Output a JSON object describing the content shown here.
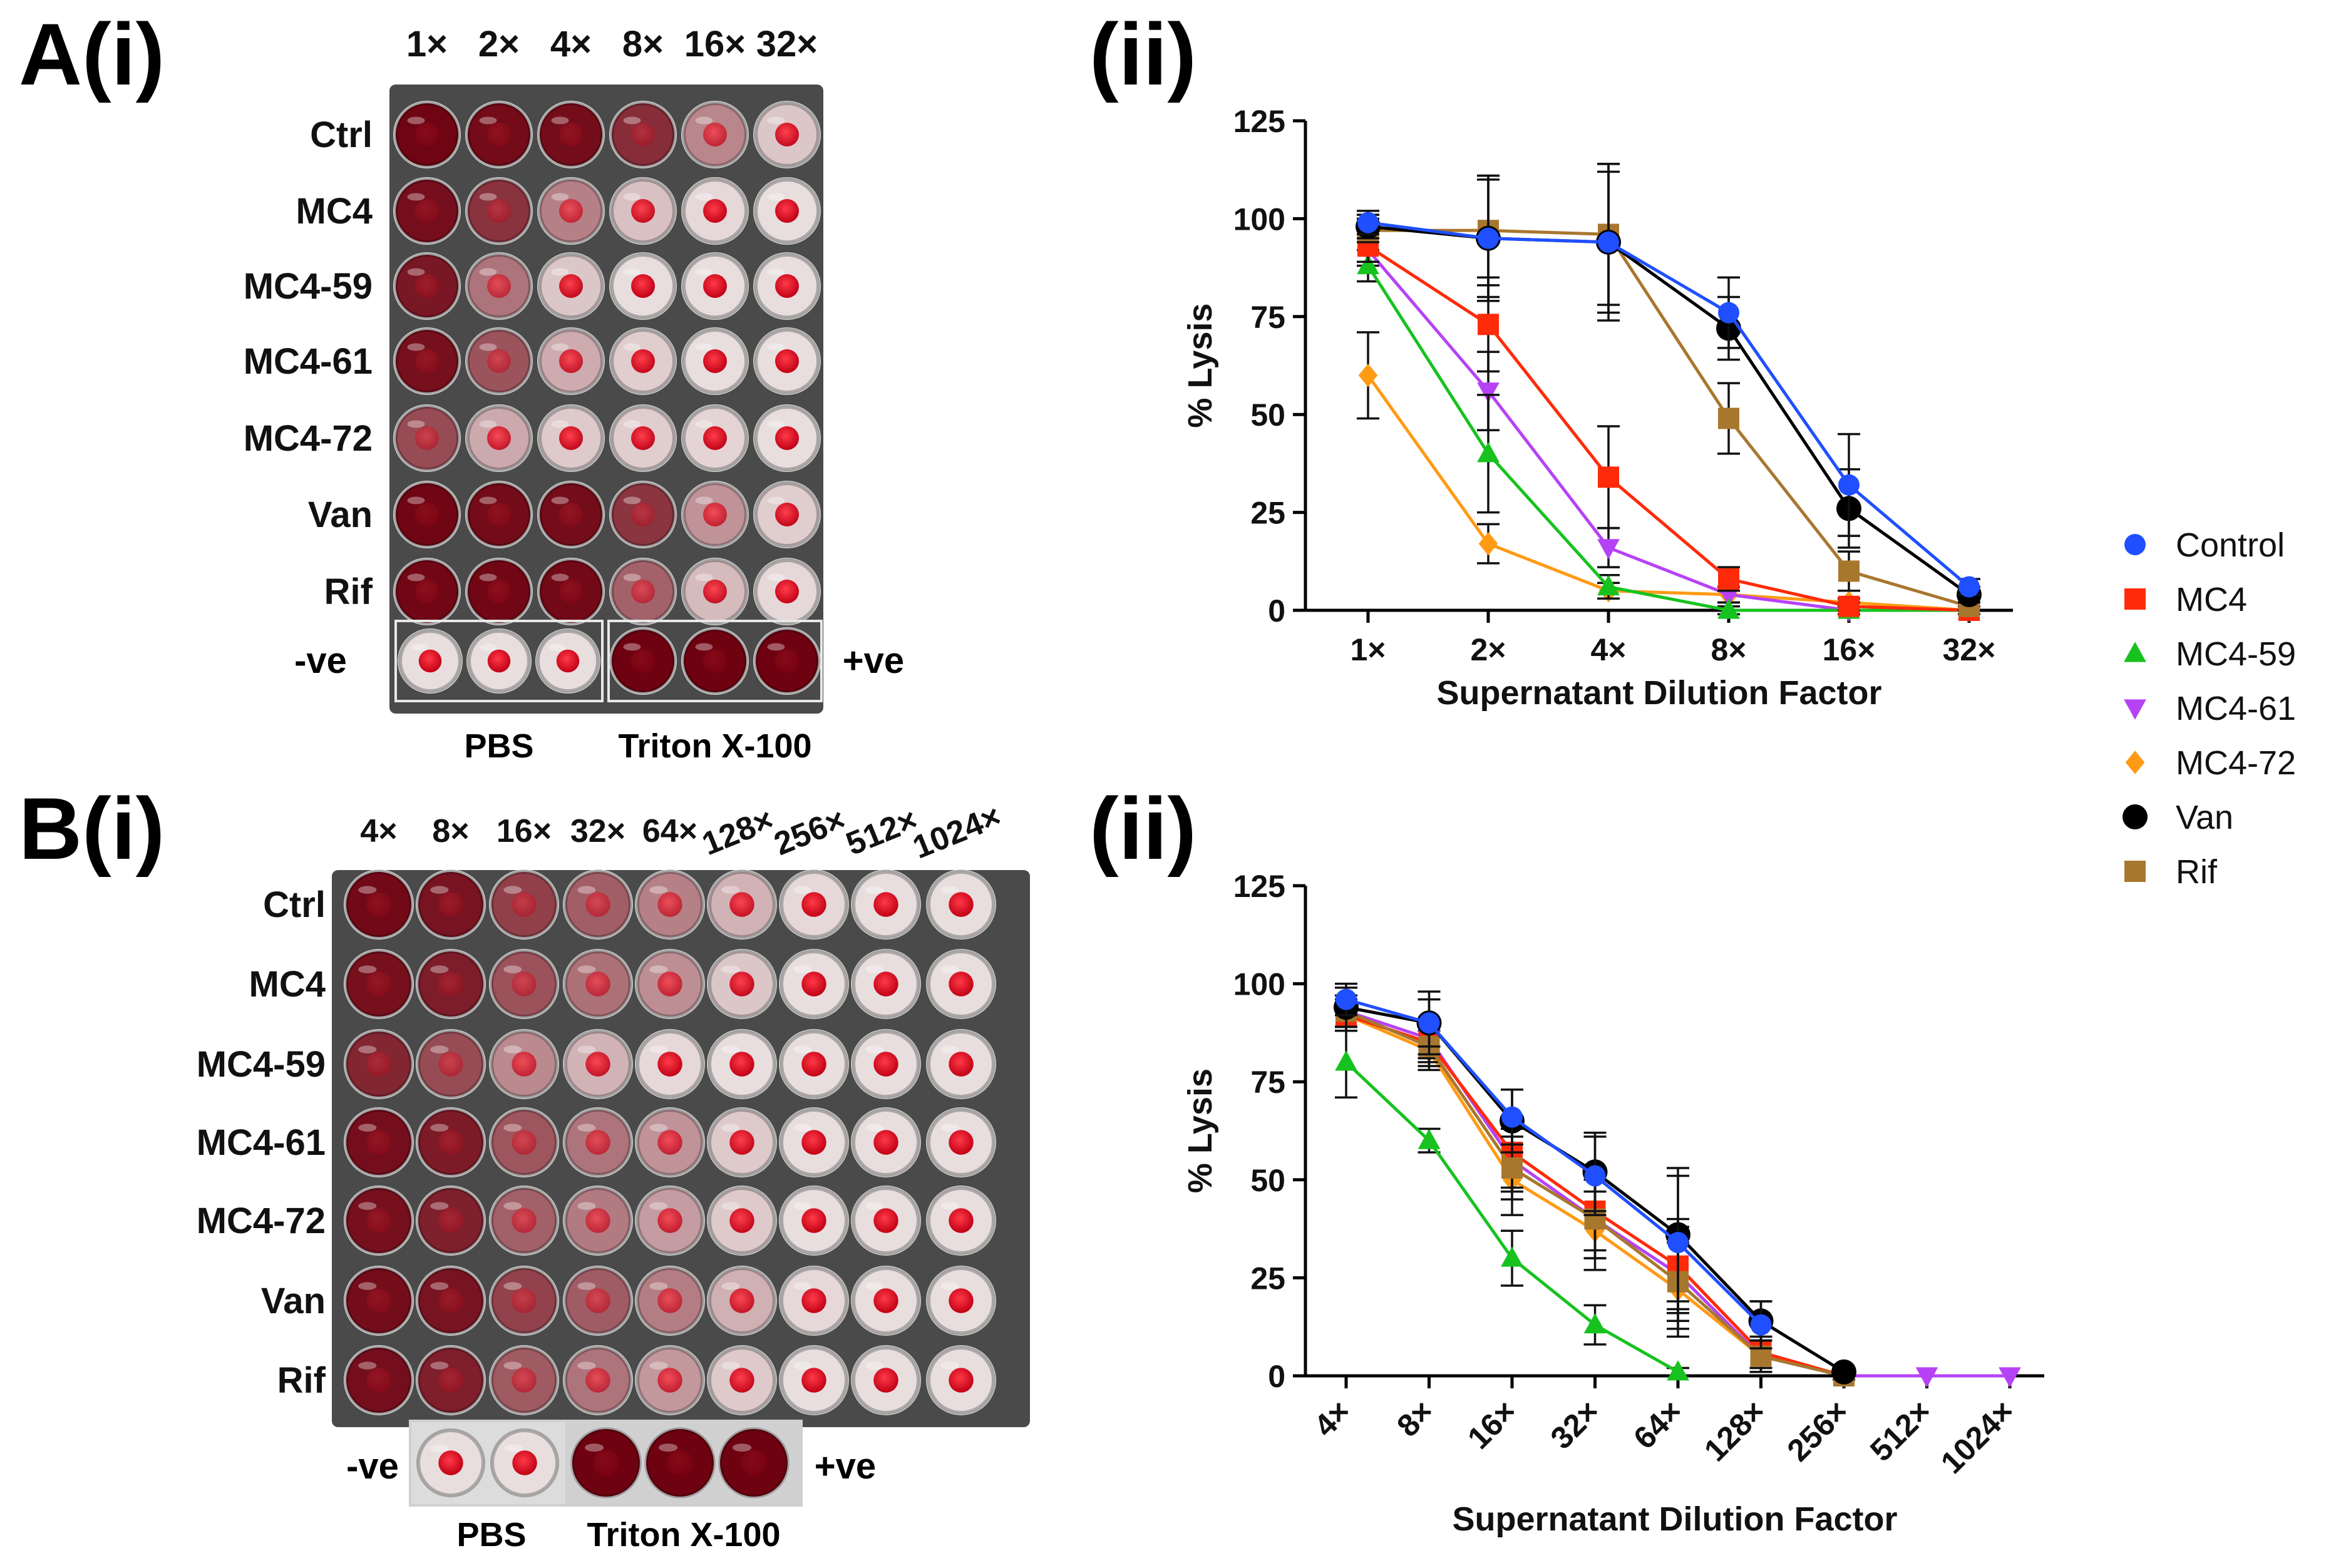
{
  "panel_labels": {
    "a": "A(i)",
    "b": "B(i)",
    "a_ii": "(ii)",
    "b_ii": "(ii)"
  },
  "plate_a": {
    "col_labels": [
      "1×",
      "2×",
      "4×",
      "8×",
      "16×",
      "32×"
    ],
    "row_labels": [
      "Ctrl",
      "MC4",
      "MC4-59",
      "MC4-61",
      "MC4-72",
      "Van",
      "Rif"
    ],
    "lysis": [
      [
        99,
        95,
        94,
        76,
        32,
        6
      ],
      [
        93,
        73,
        34,
        8,
        1,
        0
      ],
      [
        88,
        40,
        6,
        0,
        0,
        0
      ],
      [
        92,
        56,
        16,
        4,
        0,
        0
      ],
      [
        60,
        17,
        5,
        4,
        2,
        0
      ],
      [
        98,
        95,
        94,
        72,
        26,
        4
      ],
      [
        97,
        97,
        96,
        49,
        10,
        1
      ]
    ],
    "neg_label": "-ve",
    "pos_label": "+ve",
    "neg_caption": "PBS",
    "pos_caption": "Triton X-100"
  },
  "plate_b": {
    "col_labels": [
      "4×",
      "8×",
      "16×",
      "32×",
      "64×",
      "128×",
      "256×",
      "512×",
      "1024×"
    ],
    "row_labels": [
      "Ctrl",
      "MC4",
      "MC4-59",
      "MC4-61",
      "MC4-72",
      "Van",
      "Rif"
    ],
    "lysis": [
      [
        96,
        90,
        66,
        51,
        34,
        13,
        1,
        0,
        0
      ],
      [
        92,
        85,
        57,
        42,
        28,
        6,
        0,
        0,
        0
      ],
      [
        80,
        60,
        30,
        13,
        1,
        0,
        0,
        0,
        0
      ],
      [
        93,
        86,
        55,
        40,
        26,
        5,
        0,
        0,
        0
      ],
      [
        92,
        83,
        50,
        37,
        22,
        5,
        0,
        0,
        0
      ],
      [
        94,
        90,
        65,
        52,
        36,
        14,
        1,
        0,
        0
      ],
      [
        93,
        84,
        53,
        40,
        24,
        5,
        0,
        0,
        0
      ]
    ],
    "neg_label": "-ve",
    "pos_label": "+ve",
    "neg_caption": "PBS",
    "pos_caption": "Triton X-100"
  },
  "legend": [
    {
      "name": "Control",
      "color": "#1f4fff",
      "marker": "circle"
    },
    {
      "name": "MC4",
      "color": "#ff2a0a",
      "marker": "square"
    },
    {
      "name": "MC4-59",
      "color": "#17c21f",
      "marker": "triangle-up"
    },
    {
      "name": "MC4-61",
      "color": "#b642f5",
      "marker": "triangle-down"
    },
    {
      "name": "MC4-72",
      "color": "#ff9a14",
      "marker": "diamond"
    },
    {
      "name": "Van",
      "color": "#000000",
      "marker": "circle"
    },
    {
      "name": "Rif",
      "color": "#a8772e",
      "marker": "square"
    }
  ],
  "chart_data": [
    {
      "type": "line",
      "title": "",
      "xlabel": "Supernatant Dilution Factor",
      "ylabel": "% Lysis",
      "categories": [
        "1×",
        "2×",
        "4×",
        "8×",
        "16×",
        "32×"
      ],
      "ylim": [
        0,
        125
      ],
      "yticks": [
        0,
        25,
        50,
        75,
        100,
        125
      ],
      "series": [
        {
          "name": "Control",
          "values": [
            99,
            95,
            94,
            76,
            32,
            6
          ],
          "errors": [
            3,
            15,
            18,
            9,
            13,
            2
          ]
        },
        {
          "name": "MC4",
          "values": [
            93,
            73,
            34,
            8,
            1,
            0
          ],
          "errors": [
            4,
            12,
            13,
            3,
            1,
            1
          ]
        },
        {
          "name": "MC4-59",
          "values": [
            88,
            40,
            6,
            0,
            0,
            0
          ],
          "errors": [
            4,
            15,
            3,
            1,
            1,
            1
          ]
        },
        {
          "name": "MC4-61",
          "values": [
            92,
            56,
            16,
            4,
            0,
            0
          ],
          "errors": [
            4,
            10,
            5,
            2,
            1,
            1
          ]
        },
        {
          "name": "MC4-72",
          "values": [
            60,
            17,
            5,
            4,
            2,
            0
          ],
          "errors": [
            11,
            5,
            2,
            2,
            1,
            1
          ]
        },
        {
          "name": "Van",
          "values": [
            98,
            95,
            94,
            72,
            26,
            4
          ],
          "errors": [
            3,
            16,
            20,
            8,
            10,
            2
          ]
        },
        {
          "name": "Rif",
          "values": [
            97,
            97,
            96,
            49,
            10,
            1
          ],
          "errors": [
            3,
            14,
            18,
            9,
            5,
            1
          ]
        }
      ]
    },
    {
      "type": "line",
      "title": "",
      "xlabel": "Supernatant Dilution Factor",
      "ylabel": "% Lysis",
      "categories": [
        "4×",
        "8×",
        "16×",
        "32×",
        "64×",
        "128×",
        "256×",
        "512×",
        "1024×"
      ],
      "ylim": [
        0,
        125
      ],
      "yticks": [
        0,
        25,
        50,
        75,
        100,
        125
      ],
      "series": [
        {
          "name": "Control",
          "values": [
            96,
            90,
            66,
            51,
            34,
            13,
            null,
            null,
            null
          ],
          "errors": [
            4,
            6,
            7,
            10,
            17,
            6,
            0,
            0,
            0
          ]
        },
        {
          "name": "MC4",
          "values": [
            92,
            85,
            57,
            42,
            28,
            6,
            0,
            null,
            null
          ],
          "errors": [
            4,
            5,
            9,
            10,
            12,
            4,
            1,
            0,
            0
          ]
        },
        {
          "name": "MC4-59",
          "values": [
            80,
            60,
            30,
            13,
            1,
            null,
            null,
            null,
            null
          ],
          "errors": [
            9,
            3,
            7,
            5,
            1,
            0,
            0,
            0,
            0
          ]
        },
        {
          "name": "MC4-61",
          "values": [
            93,
            86,
            55,
            40,
            26,
            5,
            0,
            0,
            0
          ],
          "errors": [
            4,
            5,
            8,
            10,
            12,
            4,
            1,
            0,
            0
          ]
        },
        {
          "name": "MC4-72",
          "values": [
            92,
            83,
            50,
            37,
            22,
            5,
            0,
            null,
            null
          ],
          "errors": [
            4,
            5,
            9,
            10,
            12,
            4,
            1,
            0,
            0
          ]
        },
        {
          "name": "Van",
          "values": [
            94,
            90,
            65,
            52,
            36,
            14,
            1,
            null,
            null
          ],
          "errors": [
            5,
            8,
            8,
            10,
            17,
            5,
            1,
            0,
            0
          ]
        },
        {
          "name": "Rif",
          "values": [
            93,
            84,
            53,
            40,
            24,
            5,
            0,
            null,
            null
          ],
          "errors": [
            4,
            5,
            8,
            10,
            12,
            4,
            1,
            0,
            0
          ]
        }
      ]
    }
  ]
}
